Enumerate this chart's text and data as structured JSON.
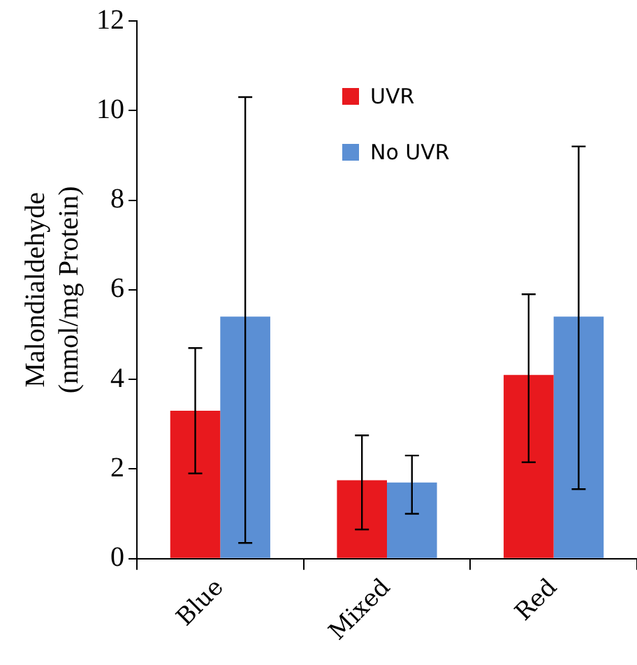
{
  "chart_data": {
    "type": "bar",
    "ylabel": "Malondialdehyde\n(nmol/mg Protein)",
    "categories": [
      "Blue",
      "Mixed",
      "Red"
    ],
    "series": [
      {
        "name": "UVR",
        "color": "#e8191e",
        "values": [
          3.3,
          1.75,
          4.1
        ],
        "errors": [
          [
            1.9,
            4.7
          ],
          [
            0.65,
            2.75
          ],
          [
            2.15,
            5.9
          ]
        ]
      },
      {
        "name": "No UVR",
        "color": "#5b8fd4",
        "values": [
          5.4,
          1.7,
          5.4
        ],
        "errors": [
          [
            0.35,
            10.3
          ],
          [
            1.0,
            2.3
          ],
          [
            1.55,
            9.2
          ]
        ]
      }
    ],
    "ylim": [
      0,
      12
    ],
    "yticks": [
      0,
      2,
      4,
      6,
      8,
      10,
      12
    ],
    "grid": false,
    "legend": "top right"
  }
}
